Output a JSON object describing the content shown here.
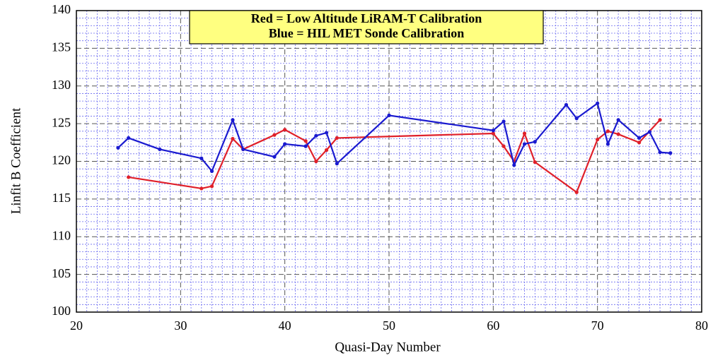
{
  "chart_data": {
    "type": "line",
    "xlabel": "Quasi-Day Number",
    "ylabel": "Linfit B Coefficient",
    "xlim": [
      20,
      80
    ],
    "xticks": [
      20,
      30,
      40,
      50,
      60,
      70,
      80
    ],
    "ylim": [
      100,
      140
    ],
    "yticks": [
      100,
      105,
      110,
      115,
      120,
      125,
      130,
      135,
      140
    ],
    "grid": true,
    "legend": "top",
    "series": [
      {
        "name": "Red = Low Altitude LiRAM-T Calibration",
        "color": "#e0202a",
        "x": [
          25,
          32,
          33,
          35,
          36,
          39,
          40,
          42,
          43,
          44,
          45,
          60,
          61,
          62,
          63,
          64,
          68,
          70,
          71,
          72,
          74,
          76
        ],
        "values": [
          117.9,
          116.4,
          116.7,
          123.0,
          121.6,
          123.5,
          124.2,
          122.7,
          120.0,
          121.5,
          123.1,
          123.7,
          122.0,
          120.0,
          123.7,
          119.9,
          115.9,
          122.9,
          124.0,
          123.6,
          122.5,
          125.5
        ]
      },
      {
        "name": "Blue = HIL MET Sonde Calibration",
        "color": "#1a1ad0",
        "x": [
          24,
          25,
          28,
          32,
          33,
          35,
          36,
          39,
          40,
          42,
          43,
          44,
          45,
          50,
          60,
          61,
          62,
          63,
          64,
          67,
          68,
          70,
          71,
          72,
          74,
          75,
          76,
          77
        ],
        "values": [
          121.8,
          123.1,
          121.6,
          120.4,
          118.7,
          125.5,
          121.6,
          120.6,
          122.3,
          122.0,
          123.4,
          123.8,
          119.7,
          126.1,
          124.1,
          125.3,
          119.5,
          122.3,
          122.6,
          127.5,
          125.7,
          127.7,
          122.3,
          125.5,
          123.1,
          123.9,
          121.2,
          121.1
        ]
      }
    ]
  }
}
